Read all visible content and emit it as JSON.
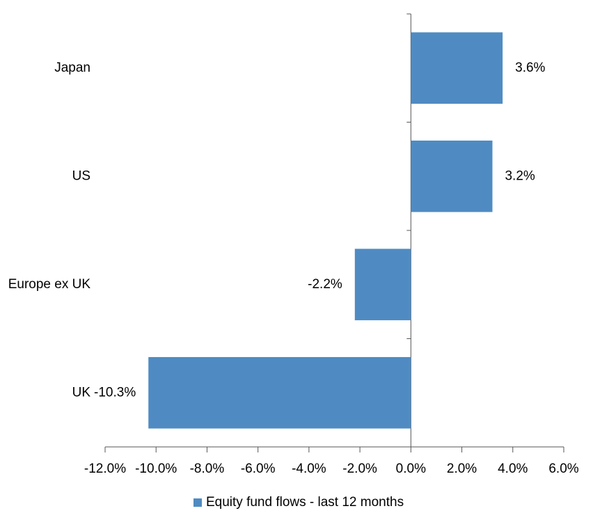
{
  "chart_data": {
    "type": "bar",
    "orientation": "horizontal",
    "categories": [
      "Japan",
      "US",
      "Europe ex UK",
      "UK"
    ],
    "series": [
      {
        "name": "Equity fund flows - last 12 months",
        "color": "#4f8bc2",
        "values": [
          3.6,
          3.2,
          -2.2,
          -10.3
        ],
        "value_labels": [
          "3.6%",
          "3.2%",
          "-2.2%",
          "-10.3%"
        ]
      }
    ],
    "xlim": [
      -12,
      6
    ],
    "xticks": [
      {
        "value": -12,
        "label": "-12.0%"
      },
      {
        "value": -10,
        "label": "-10.0%"
      },
      {
        "value": -8,
        "label": "-8.0%"
      },
      {
        "value": -6,
        "label": "-6.0%"
      },
      {
        "value": -4,
        "label": "-4.0%"
      },
      {
        "value": -2,
        "label": "-2.0%"
      },
      {
        "value": 0,
        "label": "0.0%"
      },
      {
        "value": 2,
        "label": "2.0%"
      },
      {
        "value": 4,
        "label": "4.0%"
      },
      {
        "value": 6,
        "label": "6.0%"
      }
    ],
    "legend": "bottom"
  }
}
